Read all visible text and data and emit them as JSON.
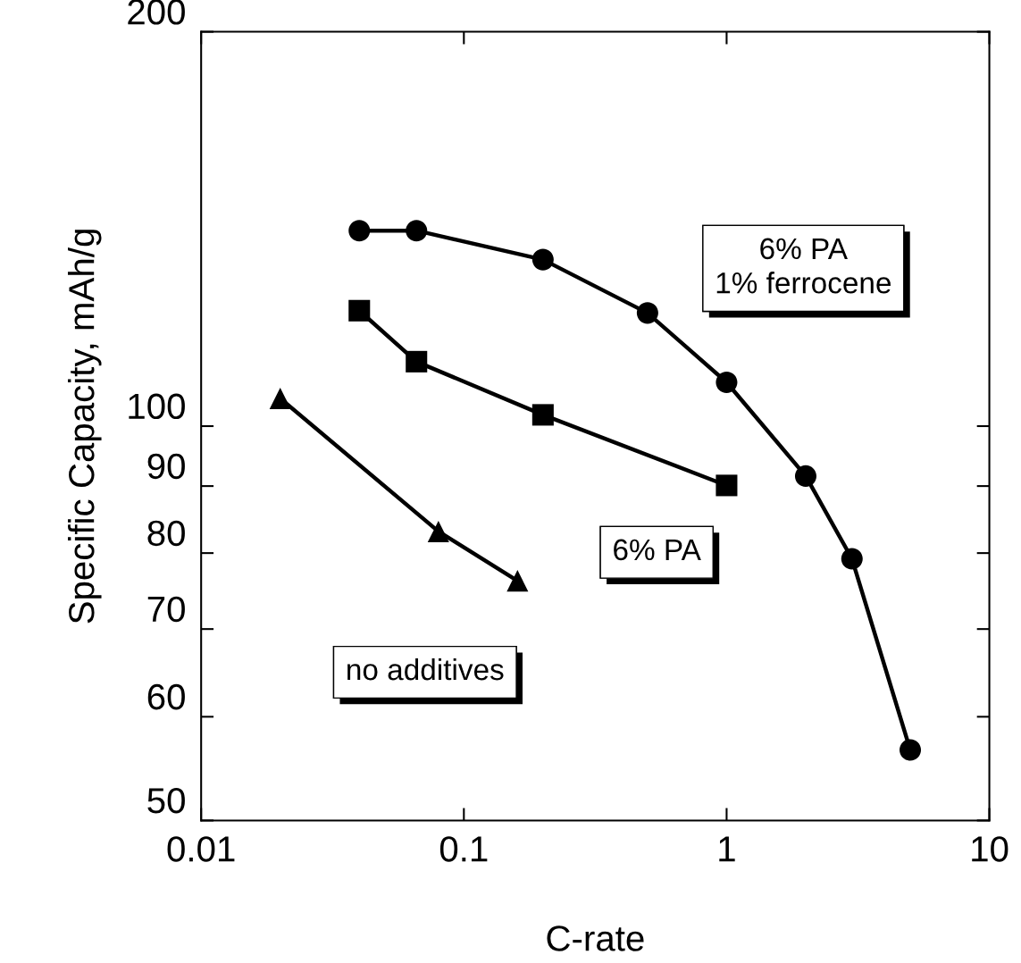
{
  "chart_data": {
    "type": "line",
    "xlabel": "C-rate",
    "ylabel": "Specific Capacity, mAh/g",
    "log": "xy",
    "xlim": [
      0.01,
      10
    ],
    "xticks": [
      0.01,
      0.1,
      1,
      10
    ],
    "ylim": [
      50,
      200
    ],
    "yticks": [
      50,
      60,
      70,
      80,
      90,
      100,
      200
    ],
    "grid": false,
    "legend": false,
    "line_style": "solid",
    "series": [
      {
        "name": "6% PA\n1% ferrocene",
        "color": "#000000",
        "marker": "circle",
        "x": [
          0.04,
          0.066,
          0.2,
          0.5,
          1,
          2,
          3,
          5
        ],
        "values": [
          141,
          141,
          134,
          122,
          108,
          91.6,
          79.2,
          56.6
        ]
      },
      {
        "name": "6% PA",
        "color": "#000000",
        "marker": "square",
        "x": [
          0.04,
          0.066,
          0.2,
          1
        ],
        "values": [
          122.5,
          112,
          102,
          90.1
        ]
      },
      {
        "name": "no additives",
        "color": "#000000",
        "marker": "triangle",
        "x": [
          0.02,
          0.08,
          0.16
        ],
        "values": [
          105,
          83.1,
          76.2
        ]
      }
    ]
  }
}
